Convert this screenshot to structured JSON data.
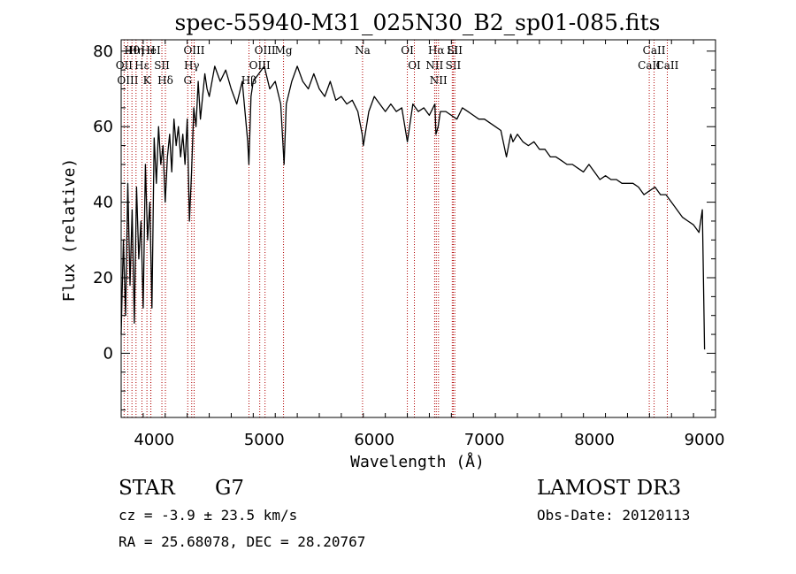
{
  "chart_data": {
    "type": "line",
    "title": "spec-55940-M31_025N30_B2_sp01-085.fits",
    "xlabel": "Wavelength (Å)",
    "ylabel": "Flux (relative)",
    "xlim": [
      3700,
      9100
    ],
    "ylim": [
      -17,
      83
    ],
    "x_ticks": [
      4000,
      5000,
      6000,
      7000,
      8000,
      9000
    ],
    "y_ticks": [
      0,
      20,
      40,
      60,
      80
    ],
    "series": [
      {
        "name": "flux",
        "x": [
          3700,
          3720,
          3740,
          3760,
          3780,
          3800,
          3820,
          3840,
          3860,
          3880,
          3900,
          3920,
          3940,
          3960,
          3980,
          4000,
          4020,
          4040,
          4060,
          4080,
          4100,
          4120,
          4140,
          4160,
          4180,
          4200,
          4220,
          4240,
          4260,
          4280,
          4300,
          4320,
          4340,
          4360,
          4380,
          4400,
          4420,
          4440,
          4460,
          4480,
          4500,
          4550,
          4600,
          4650,
          4700,
          4750,
          4800,
          4850,
          4860,
          4880,
          4900,
          4950,
          5000,
          5050,
          5100,
          5150,
          5180,
          5200,
          5250,
          5300,
          5350,
          5400,
          5450,
          5500,
          5550,
          5600,
          5650,
          5700,
          5750,
          5800,
          5850,
          5890,
          5900,
          5950,
          6000,
          6050,
          6100,
          6150,
          6200,
          6250,
          6300,
          6350,
          6400,
          6450,
          6500,
          6550,
          6560,
          6580,
          6600,
          6650,
          6700,
          6750,
          6800,
          6850,
          6900,
          6950,
          7000,
          7050,
          7100,
          7150,
          7200,
          7240,
          7260,
          7300,
          7350,
          7400,
          7450,
          7500,
          7550,
          7600,
          7650,
          7700,
          7750,
          7800,
          7850,
          7900,
          7950,
          8000,
          8050,
          8100,
          8150,
          8200,
          8250,
          8300,
          8350,
          8400,
          8450,
          8500,
          8550,
          8600,
          8650,
          8700,
          8750,
          8800,
          8850,
          8900,
          8950,
          8980,
          9000
        ],
        "y": [
          5,
          30,
          10,
          45,
          18,
          38,
          8,
          44,
          25,
          35,
          12,
          50,
          30,
          40,
          12,
          57,
          45,
          60,
          50,
          55,
          40,
          52,
          58,
          48,
          62,
          55,
          60,
          52,
          58,
          50,
          62,
          35,
          48,
          65,
          60,
          72,
          62,
          68,
          74,
          70,
          68,
          76,
          72,
          75,
          70,
          66,
          72,
          56,
          50,
          68,
          72,
          74,
          76,
          70,
          72,
          66,
          50,
          66,
          72,
          76,
          72,
          70,
          74,
          70,
          68,
          72,
          67,
          68,
          66,
          67,
          64,
          58,
          55,
          64,
          68,
          66,
          64,
          66,
          64,
          65,
          56,
          66,
          64,
          65,
          63,
          66,
          58,
          60,
          64,
          64,
          63,
          62,
          65,
          64,
          63,
          62,
          62,
          61,
          60,
          59,
          52,
          58,
          56,
          58,
          56,
          55,
          56,
          54,
          54,
          52,
          52,
          51,
          50,
          50,
          49,
          48,
          50,
          48,
          46,
          47,
          46,
          46,
          45,
          45,
          45,
          44,
          42,
          43,
          44,
          42,
          42,
          40,
          38,
          36,
          35,
          34,
          32,
          38,
          1
        ]
      }
    ],
    "lines": [
      {
        "label": "Hθ",
        "x": 3798
      },
      {
        "label": "OII",
        "x": 3727
      },
      {
        "label": "OIII",
        "x": 3760
      },
      {
        "label": "Hε",
        "x": 3889
      },
      {
        "label": "K",
        "x": 3934
      },
      {
        "label": "HeI",
        "x": 3970
      },
      {
        "label": "Hη",
        "x": 3835
      },
      {
        "label": "H",
        "x": 3969
      },
      {
        "label": "SII",
        "x": 4070
      },
      {
        "label": "Hδ",
        "x": 4102
      },
      {
        "label": "OIII",
        "x": 4363
      },
      {
        "label": "Hγ",
        "x": 4341
      },
      {
        "label": "G",
        "x": 4305
      },
      {
        "label": "OIII",
        "x": 5007
      },
      {
        "label": "OIII",
        "x": 4959
      },
      {
        "label": "Hβ",
        "x": 4861
      },
      {
        "label": "Mg",
        "x": 5175
      },
      {
        "label": "Na",
        "x": 5893
      },
      {
        "label": "OI",
        "x": 6300
      },
      {
        "label": "OI",
        "x": 6364
      },
      {
        "label": "Hα",
        "x": 6563
      },
      {
        "label": "NII",
        "x": 6548
      },
      {
        "label": "NII",
        "x": 6583
      },
      {
        "label": "SII",
        "x": 6717
      },
      {
        "label": "SII",
        "x": 6731
      },
      {
        "label": "Li",
        "x": 6708
      },
      {
        "label": "CaII",
        "x": 8542
      },
      {
        "label": "CaII",
        "x": 8498
      },
      {
        "label": "CaII",
        "x": 8662
      }
    ],
    "annotations": {
      "class": "STAR",
      "subclass": "G7",
      "survey": "LAMOST DR3",
      "redshift": "cz = -3.9 ± 23.5 km/s",
      "obs_date": "Obs-Date: 20120113",
      "coords": "RA =  25.68078, DEC =  28.20767"
    },
    "colors": {
      "spectrum": "#000000",
      "lines": "#b00000"
    }
  }
}
